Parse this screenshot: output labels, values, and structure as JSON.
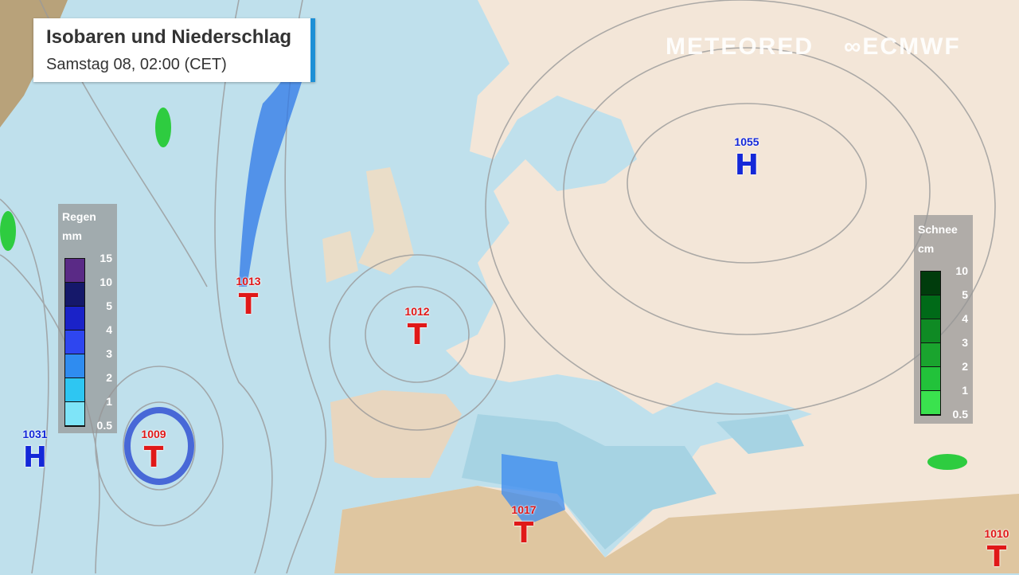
{
  "header": {
    "title": "Isobaren und Niederschlag",
    "subtitle": "Samstag 08, 02:00 (CET)"
  },
  "logos": {
    "meteored": "METEORED",
    "ecmwf": "ECMWF"
  },
  "colors": {
    "accent": "#1e90d6",
    "high": "#1428d8",
    "low": "#e01818",
    "ocean": "#bfe0ec",
    "land": "#f3e6d8"
  },
  "rain_legend": {
    "title": "Regen",
    "unit": "mm",
    "ticks": [
      "15",
      "10",
      "5",
      "4",
      "3",
      "2",
      "1",
      "0.5"
    ],
    "colors": [
      "#5a2a86",
      "#15186a",
      "#1a22c8",
      "#2e46f0",
      "#2f8cf0",
      "#2ec6f2",
      "#7ee4f8"
    ]
  },
  "snow_legend": {
    "title": "Schnee",
    "unit": "cm",
    "ticks": [
      "10",
      "5",
      "4",
      "3",
      "2",
      "1",
      "0.5"
    ],
    "colors": [
      "#003c0c",
      "#006a18",
      "#0f8a24",
      "#1aa42e",
      "#22c23a",
      "#3ae24e"
    ]
  },
  "pressure_centers": [
    {
      "type": "H",
      "symbol": "H",
      "value": "1055"
    },
    {
      "type": "H",
      "symbol": "H",
      "value": "1031"
    },
    {
      "type": "T",
      "symbol": "T",
      "value": "1013"
    },
    {
      "type": "T",
      "symbol": "T",
      "value": "1012"
    },
    {
      "type": "T",
      "symbol": "T",
      "value": "1009"
    },
    {
      "type": "T",
      "symbol": "T",
      "value": "1017"
    },
    {
      "type": "T",
      "symbol": "T",
      "value": "1010"
    }
  ]
}
